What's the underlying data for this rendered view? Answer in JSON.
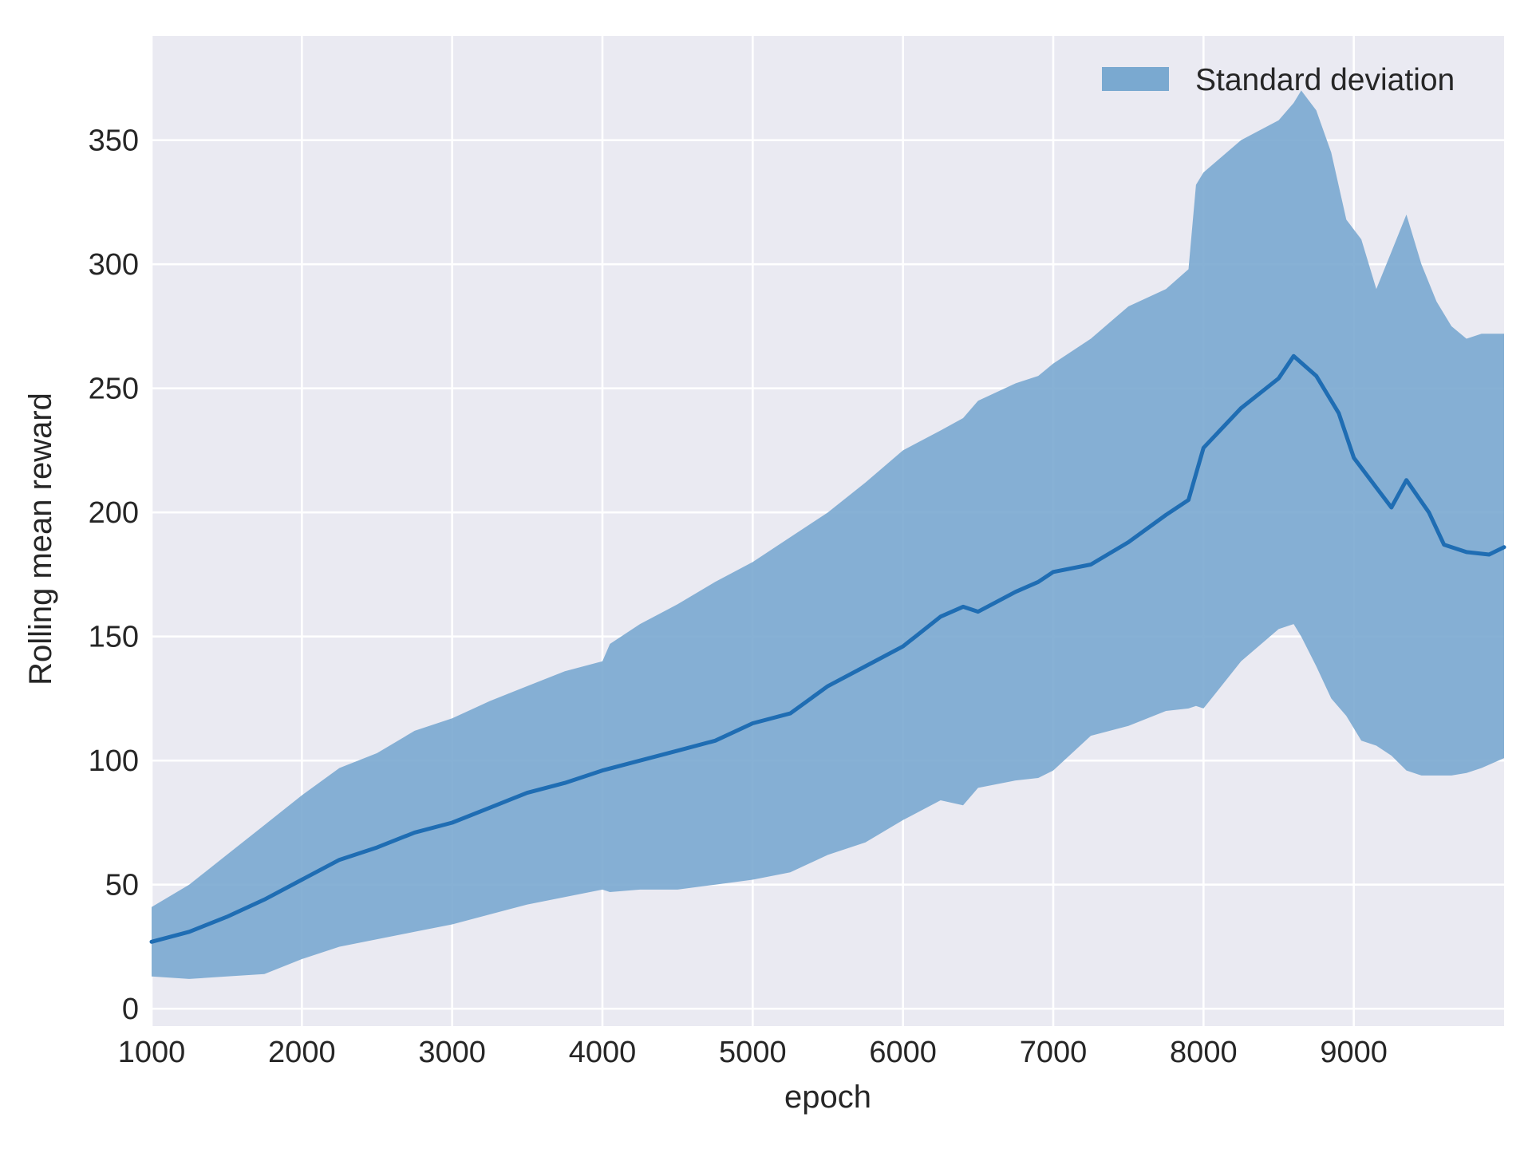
{
  "chart_data": {
    "type": "line",
    "title": "",
    "xlabel": "epoch",
    "ylabel": "Rolling mean reward",
    "xlim": [
      1000,
      10000
    ],
    "ylim": [
      -7,
      392
    ],
    "xticks": [
      1000,
      2000,
      3000,
      4000,
      5000,
      6000,
      7000,
      8000,
      9000
    ],
    "xtick_labels": [
      "1000",
      "2000",
      "3000",
      "4000",
      "5000",
      "6000",
      "7000",
      "8000",
      "9000"
    ],
    "yticks": [
      0,
      50,
      100,
      150,
      200,
      250,
      300,
      350
    ],
    "ytick_labels": [
      "0",
      "50",
      "100",
      "150",
      "200",
      "250",
      "300",
      "350"
    ],
    "grid": true,
    "legend": {
      "position": "top-right",
      "entries": [
        "Standard deviation"
      ]
    },
    "colors": {
      "line": "#1f6db3",
      "band": "#7aa9d0",
      "background": "#eaeaf2",
      "grid": "#ffffff"
    },
    "series": [
      {
        "kind": "line",
        "x": [
          1000,
          1250,
          1500,
          1750,
          2000,
          2250,
          2500,
          2750,
          3000,
          3250,
          3500,
          3750,
          4000,
          4250,
          4500,
          4750,
          5000,
          5250,
          5500,
          5750,
          6000,
          6250,
          6400,
          6500,
          6750,
          6900,
          7000,
          7250,
          7500,
          7750,
          7900,
          8000,
          8250,
          8500,
          8600,
          8750,
          8900,
          9000,
          9150,
          9250,
          9350,
          9500,
          9600,
          9750,
          9900,
          10000
        ],
        "values": [
          27,
          31,
          37,
          44,
          52,
          60,
          65,
          71,
          75,
          81,
          87,
          91,
          96,
          100,
          104,
          108,
          115,
          119,
          130,
          138,
          146,
          158,
          162,
          160,
          168,
          172,
          176,
          179,
          188,
          199,
          205,
          226,
          242,
          254,
          263,
          255,
          240,
          222,
          210,
          202,
          213,
          200,
          187,
          184,
          183,
          186
        ]
      },
      {
        "kind": "band",
        "name": "Standard deviation",
        "x": [
          1000,
          1250,
          1500,
          1750,
          2000,
          2250,
          2500,
          2750,
          3000,
          3250,
          3500,
          3750,
          4000,
          4050,
          4250,
          4500,
          4750,
          5000,
          5250,
          5500,
          5750,
          6000,
          6250,
          6400,
          6500,
          6750,
          6900,
          7000,
          7250,
          7500,
          7750,
          7900,
          7950,
          8000,
          8250,
          8500,
          8600,
          8650,
          8750,
          8850,
          8950,
          9050,
          9150,
          9250,
          9350,
          9450,
          9550,
          9650,
          9750,
          9850,
          10000
        ],
        "upper": [
          41,
          50,
          62,
          74,
          86,
          97,
          103,
          112,
          117,
          124,
          130,
          136,
          140,
          147,
          155,
          163,
          172,
          180,
          190,
          200,
          212,
          225,
          233,
          238,
          245,
          252,
          255,
          260,
          270,
          283,
          290,
          298,
          332,
          337,
          350,
          358,
          365,
          370,
          362,
          345,
          318,
          310,
          290,
          305,
          320,
          300,
          285,
          275,
          270,
          272,
          272
        ],
        "lower": [
          13,
          12,
          13,
          14,
          20,
          25,
          28,
          31,
          34,
          38,
          42,
          45,
          48,
          47,
          48,
          48,
          50,
          52,
          55,
          62,
          67,
          76,
          84,
          82,
          89,
          92,
          93,
          96,
          110,
          114,
          120,
          121,
          122,
          121,
          140,
          153,
          155,
          150,
          138,
          125,
          118,
          108,
          106,
          102,
          96,
          94,
          94,
          94,
          95,
          97,
          101
        ]
      }
    ]
  }
}
